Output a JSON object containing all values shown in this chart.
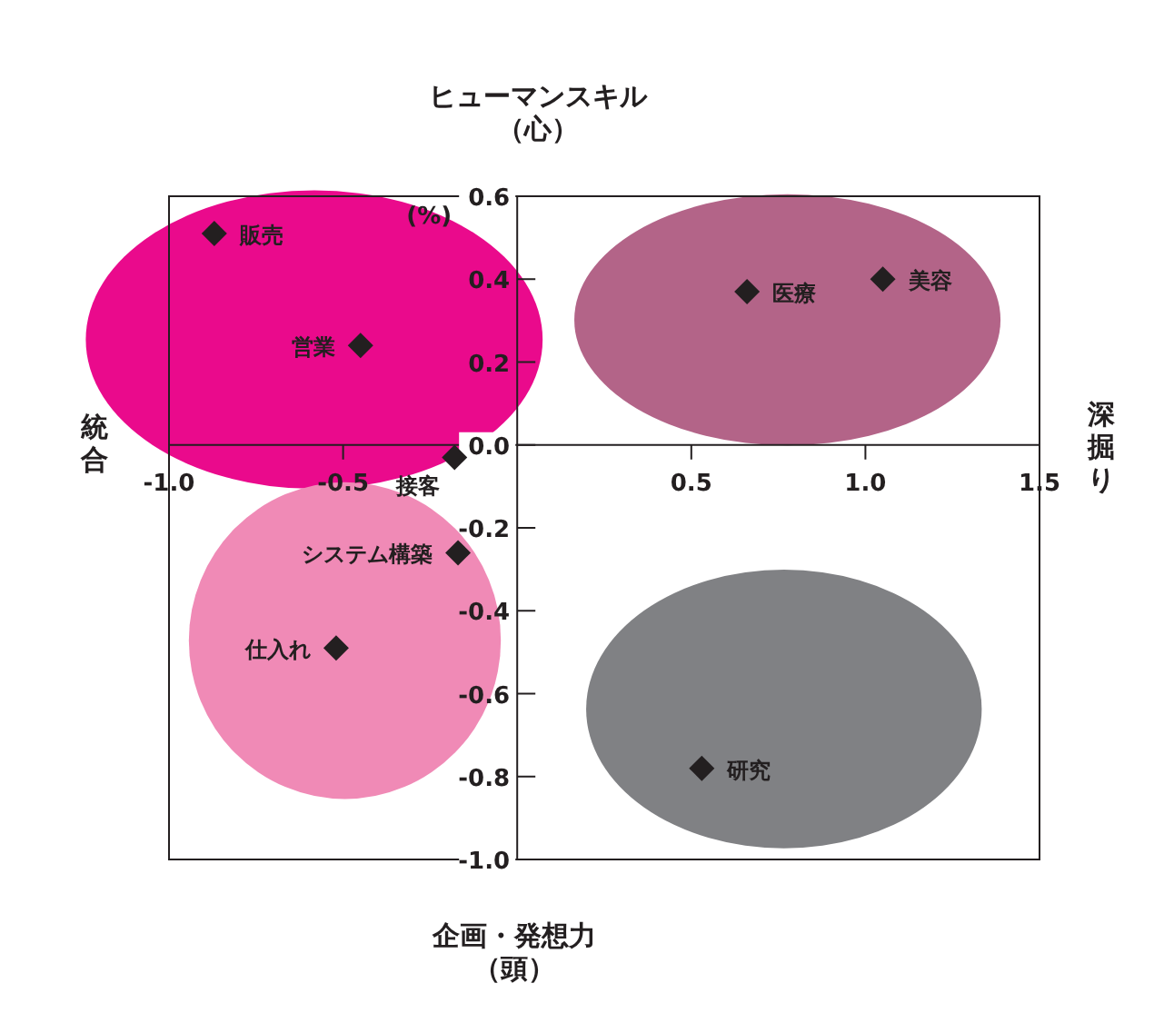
{
  "chart_data": {
    "type": "scatter",
    "title": "ヒューマンスキル（心）",
    "xlabel": "企画・発想力（頭）",
    "ylabel": "(%)",
    "annotations": [
      "統合",
      "深掘り"
    ],
    "marker": "diamond",
    "grid": false,
    "legend": false,
    "xlim": [
      -1,
      1.5
    ],
    "xticks": [
      {
        "value": -1,
        "label": "-1.0"
      },
      -0.5,
      0.5,
      {
        "value": 1,
        "label": "1.0"
      },
      1.5
    ],
    "ylim": [
      -1,
      0.6
    ],
    "yticks": [
      {
        "value": -1,
        "label": "-1.0"
      },
      -0.8,
      -0.6,
      -0.4,
      -0.2,
      {
        "value": 0,
        "label": "0.0"
      },
      0.2,
      0.4,
      0.6
    ],
    "series": [
      {
        "name": "販売",
        "color": "#231f20",
        "x": [
          -0.87
        ],
        "values": [
          0.51
        ]
      },
      {
        "name": "営業",
        "color": "#231f20",
        "x": [
          -0.45
        ],
        "values": [
          0.24
        ]
      },
      {
        "name": "接客",
        "color": "#231f20",
        "x": [
          -0.18
        ],
        "values": [
          -0.03
        ]
      },
      {
        "name": "医療",
        "color": "#231f20",
        "x": [
          0.66
        ],
        "values": [
          0.37
        ]
      },
      {
        "name": "美容",
        "color": "#231f20",
        "x": [
          1.05
        ],
        "values": [
          0.4
        ]
      },
      {
        "name": "システム構築",
        "color": "#231f20",
        "x": [
          -0.17
        ],
        "values": [
          -0.26
        ]
      },
      {
        "name": "仕入れ",
        "color": "#231f20",
        "x": [
          -0.52
        ],
        "values": [
          -0.49
        ]
      },
      {
        "name": "研究",
        "color": "#231f20",
        "x": [
          0.53
        ],
        "values": [
          -0.78
        ]
      }
    ]
  }
}
